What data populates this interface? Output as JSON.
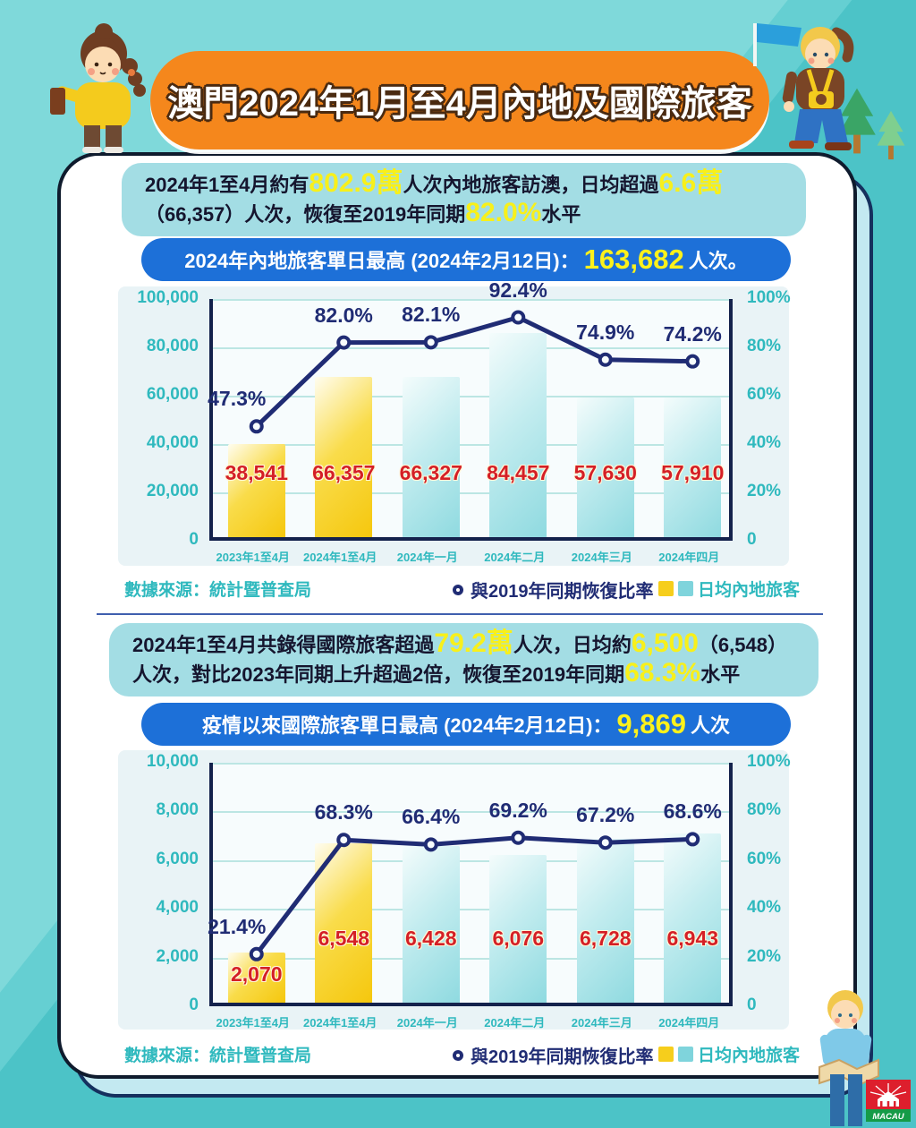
{
  "page_title": "澳門2024年1月至4月內地及國際旅客",
  "colors": {
    "bg_light": "#7FD9DA",
    "bg_dark": "#4CC3C7",
    "banner_orange": "#F5871C",
    "pill_blue": "#1D70D8",
    "summary_teal": "#A3DDE4",
    "highlight_yellow": "#F8F01A",
    "bar_yellow": "#F5C70D",
    "bar_teal": "#8FDAE0",
    "line_navy": "#202C74",
    "value_red": "#D41F26",
    "axis_teal": "#2FB9BE"
  },
  "section1": {
    "summary_lines": [
      [
        {
          "t": "2024年1至4月約有"
        },
        {
          "t": "802.9萬",
          "hl": true
        },
        {
          "t": "人次內地旅客訪澳，日均超過"
        },
        {
          "t": "6.6萬",
          "hl": true
        }
      ],
      [
        {
          "t": "（66,357）人次，恢復至2019年同期"
        },
        {
          "t": "82.0%",
          "hl": true
        },
        {
          "t": "水平"
        }
      ]
    ],
    "banner": {
      "text": "2024年內地旅客單日最高 (2024年2月12日)：",
      "highlight": "163,682",
      "suffix": "人次。"
    },
    "source": "數據來源：統計暨普查局",
    "legend_line": "與2019年同期恢復比率",
    "legend_bar": "日均內地旅客"
  },
  "section2": {
    "summary_lines": [
      [
        {
          "t": "2024年1至4月共錄得國際旅客超過"
        },
        {
          "t": "79.2萬",
          "hl": true
        },
        {
          "t": "人次，日均約"
        },
        {
          "t": "6,500",
          "hl": true
        },
        {
          "t": "（6,548）"
        }
      ],
      [
        {
          "t": "人次，對比2023年同期上升超過2倍，恢復至2019年同期"
        },
        {
          "t": "68.3%",
          "hl": true
        },
        {
          "t": "水平"
        }
      ]
    ],
    "banner": {
      "text": "疫情以來國際旅客單日最高 (2024年2月12日)：",
      "highlight": "9,869",
      "suffix": "人次"
    },
    "source": "數據來源：統計暨普查局",
    "legend_line": "與2019年同期恢復比率",
    "legend_bar": "日均內地旅客"
  },
  "chart_data": [
    {
      "type": "bar+line",
      "categories": [
        "2023年1至4月",
        "2024年1至4月",
        "2024年一月",
        "2024年二月",
        "2024年三月",
        "2024年四月"
      ],
      "series": [
        {
          "name": "日均內地旅客",
          "type": "bar",
          "values": [
            38541,
            66357,
            66327,
            84457,
            57630,
            57910
          ],
          "labels": [
            "38,541",
            "66,357",
            "66,327",
            "84,457",
            "57,630",
            "57,910"
          ]
        },
        {
          "name": "與2019年同期恢復比率",
          "type": "line",
          "values": [
            47.3,
            82.0,
            82.1,
            92.4,
            74.9,
            74.2
          ],
          "labels": [
            "47.3%",
            "82.0%",
            "82.1%",
            "92.4%",
            "74.9%",
            "74.2%"
          ]
        }
      ],
      "left_axis": {
        "min": 0,
        "max": 100000,
        "ticks": [
          "100,000",
          "80,000",
          "60,000",
          "40,000",
          "20,000",
          "0"
        ]
      },
      "right_axis": {
        "min": 0,
        "max": 100,
        "ticks": [
          "100%",
          "80%",
          "60%",
          "40%",
          "20%",
          "0"
        ]
      },
      "bar_palette": [
        "yellow",
        "yellow",
        "teal",
        "teal",
        "teal",
        "teal"
      ],
      "grid": true,
      "legend_position": "bottom"
    },
    {
      "type": "bar+line",
      "categories": [
        "2023年1至4月",
        "2024年1至4月",
        "2024年一月",
        "2024年二月",
        "2024年三月",
        "2024年四月"
      ],
      "series": [
        {
          "name": "日均內地旅客",
          "type": "bar",
          "values": [
            2070,
            6548,
            6428,
            6076,
            6728,
            6943
          ],
          "labels": [
            "2,070",
            "6,548",
            "6,428",
            "6,076",
            "6,728",
            "6,943"
          ]
        },
        {
          "name": "與2019年同期恢復比率",
          "type": "line",
          "values": [
            21.4,
            68.3,
            66.4,
            69.2,
            67.2,
            68.6
          ],
          "labels": [
            "21.4%",
            "68.3%",
            "66.4%",
            "69.2%",
            "67.2%",
            "68.6%"
          ]
        }
      ],
      "left_axis": {
        "min": 0,
        "max": 10000,
        "ticks": [
          "10,000",
          "8,000",
          "6,000",
          "4,000",
          "2,000",
          "0"
        ]
      },
      "right_axis": {
        "min": 0,
        "max": 100,
        "ticks": [
          "100%",
          "80%",
          "60%",
          "40%",
          "20%",
          "0"
        ]
      },
      "bar_palette": [
        "yellow",
        "yellow",
        "teal",
        "teal",
        "teal",
        "teal"
      ],
      "grid": true,
      "legend_position": "bottom"
    }
  ],
  "logo": {
    "text": "MACAU"
  }
}
